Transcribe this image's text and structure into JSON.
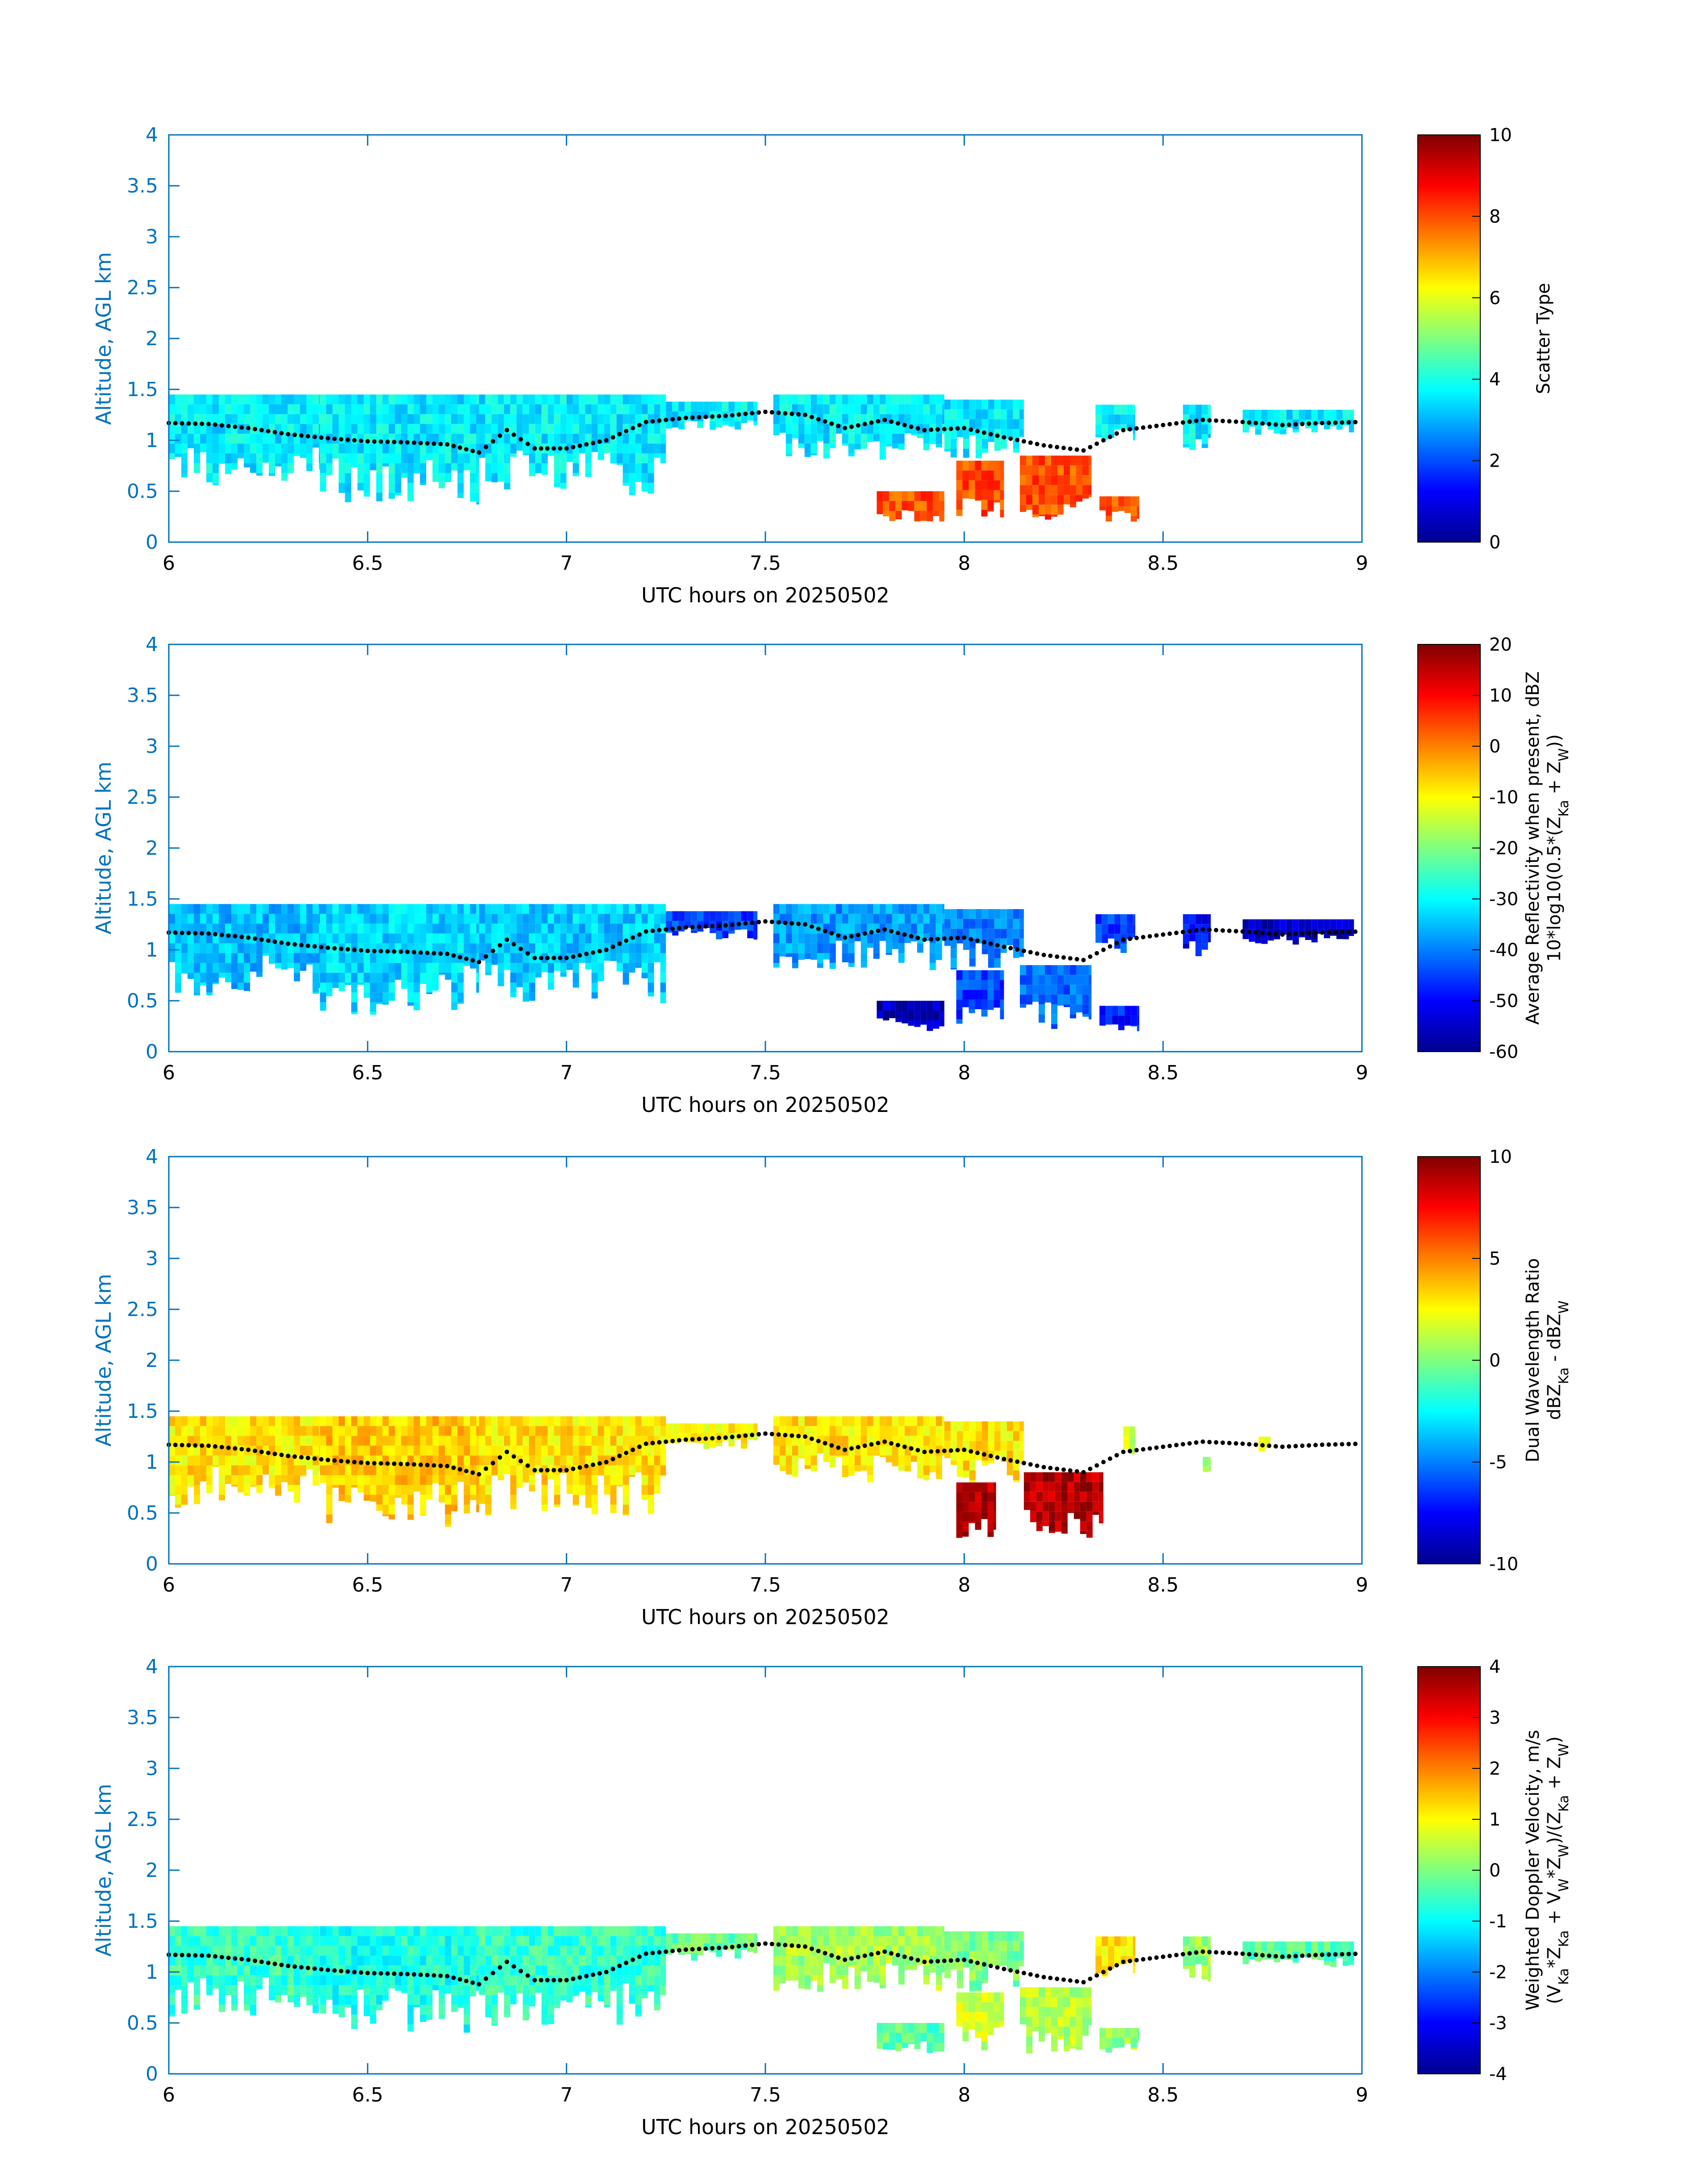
{
  "chart_data": [
    {
      "type": "heatmap",
      "variable": "scatter_type",
      "xlabel": "UTC hours on 20250502",
      "ylabel": "Altitude, AGL km",
      "xlim": [
        6,
        9
      ],
      "ylim": [
        0,
        4
      ],
      "xticks": [
        6,
        6.5,
        7,
        7.5,
        8,
        8.5,
        9
      ],
      "xtick_labels": [
        "6",
        "6.5",
        "7",
        "7.5",
        "8",
        "8.5",
        "9"
      ],
      "yticks": [
        0,
        0.5,
        1,
        1.5,
        2,
        2.5,
        3,
        3.5,
        4
      ],
      "ytick_labels": [
        "0",
        "0.5",
        "1",
        "1.5",
        "2",
        "2.5",
        "3",
        "3.5",
        "4"
      ],
      "colorbar": {
        "label_lines": [
          "Scatter Type"
        ],
        "clim": [
          0,
          10
        ],
        "ticks": [
          0,
          2,
          4,
          6,
          8,
          10
        ],
        "tick_labels": [
          "0",
          "2",
          "4",
          "6",
          "8",
          "10"
        ]
      },
      "cloud_regions": [
        {
          "x0": 6.0,
          "x1": 6.38,
          "y0": 0.55,
          "y1": 1.45,
          "value": 3.6
        },
        {
          "x0": 6.38,
          "x1": 6.78,
          "y0": 0.35,
          "y1": 1.45,
          "value": 3.6
        },
        {
          "x0": 6.78,
          "x1": 7.25,
          "y0": 0.45,
          "y1": 1.45,
          "value": 3.6
        },
        {
          "x0": 7.25,
          "x1": 7.48,
          "y0": 1.1,
          "y1": 1.38,
          "value": 3.6
        },
        {
          "x0": 7.52,
          "x1": 7.95,
          "y0": 0.8,
          "y1": 1.45,
          "value": 3.6
        },
        {
          "x0": 7.95,
          "x1": 8.15,
          "y0": 0.8,
          "y1": 1.4,
          "value": 3.6
        },
        {
          "x0": 8.33,
          "x1": 8.43,
          "y0": 0.95,
          "y1": 1.35,
          "value": 3.6
        },
        {
          "x0": 8.55,
          "x1": 8.62,
          "y0": 0.9,
          "y1": 1.35,
          "value": 3.6
        },
        {
          "x0": 8.7,
          "x1": 8.98,
          "y0": 1.05,
          "y1": 1.3,
          "value": 3.6
        }
      ],
      "rain_regions": [
        {
          "x0": 7.78,
          "x1": 7.95,
          "y0": 0.2,
          "y1": 0.5,
          "value": 8.0
        },
        {
          "x0": 7.98,
          "x1": 8.1,
          "y0": 0.2,
          "y1": 0.8,
          "value": 8.0
        },
        {
          "x0": 8.14,
          "x1": 8.32,
          "y0": 0.2,
          "y1": 0.85,
          "value": 8.0
        },
        {
          "x0": 8.34,
          "x1": 8.44,
          "y0": 0.2,
          "y1": 0.45,
          "value": 8.0
        }
      ],
      "cloud_base_dots": {
        "x": [
          6.0,
          6.1,
          6.2,
          6.3,
          6.4,
          6.5,
          6.6,
          6.7,
          6.78,
          6.85,
          6.92,
          7.0,
          7.1,
          7.2,
          7.3,
          7.4,
          7.5,
          7.6,
          7.7,
          7.8,
          7.9,
          8.0,
          8.1,
          8.2,
          8.3,
          8.4,
          8.6,
          8.7,
          8.8,
          8.9,
          9.0
        ],
        "y": [
          1.17,
          1.16,
          1.12,
          1.06,
          1.02,
          0.99,
          0.98,
          0.96,
          0.88,
          1.1,
          0.92,
          0.92,
          1.0,
          1.18,
          1.22,
          1.24,
          1.28,
          1.25,
          1.12,
          1.2,
          1.1,
          1.12,
          1.03,
          0.95,
          0.9,
          1.1,
          1.2,
          1.18,
          1.15,
          1.17,
          1.18
        ]
      }
    },
    {
      "type": "heatmap",
      "variable": "average_reflectivity",
      "xlabel": "UTC hours on 20250502",
      "ylabel": "Altitude, AGL km",
      "xlim": [
        6,
        9
      ],
      "ylim": [
        0,
        4
      ],
      "xticks": [
        6,
        6.5,
        7,
        7.5,
        8,
        8.5,
        9
      ],
      "xtick_labels": [
        "6",
        "6.5",
        "7",
        "7.5",
        "8",
        "8.5",
        "9"
      ],
      "yticks": [
        0,
        0.5,
        1,
        1.5,
        2,
        2.5,
        3,
        3.5,
        4
      ],
      "ytick_labels": [
        "0",
        "0.5",
        "1",
        "1.5",
        "2",
        "2.5",
        "3",
        "3.5",
        "4"
      ],
      "colorbar": {
        "label_lines": [
          "Average Reflectivity when present, dBZ",
          "10*log10(0.5*(Z_Ka + Z_W))"
        ],
        "clim": [
          -60,
          20
        ],
        "ticks": [
          -60,
          -50,
          -40,
          -30,
          -20,
          -10,
          0,
          10,
          20
        ],
        "tick_labels": [
          "-60",
          "-50",
          "-40",
          "-30",
          "-20",
          "-10",
          "0",
          "10",
          "20"
        ]
      },
      "cloud_regions": [
        {
          "x0": 6.0,
          "x1": 6.38,
          "y0": 0.55,
          "y1": 1.45,
          "value": -35
        },
        {
          "x0": 6.38,
          "x1": 6.78,
          "y0": 0.35,
          "y1": 1.45,
          "value": -33
        },
        {
          "x0": 6.78,
          "x1": 7.25,
          "y0": 0.45,
          "y1": 1.45,
          "value": -34
        },
        {
          "x0": 7.25,
          "x1": 7.48,
          "y0": 1.1,
          "y1": 1.38,
          "value": -45
        },
        {
          "x0": 7.52,
          "x1": 7.95,
          "y0": 0.8,
          "y1": 1.45,
          "value": -38
        },
        {
          "x0": 7.95,
          "x1": 8.15,
          "y0": 0.8,
          "y1": 1.4,
          "value": -40
        },
        {
          "x0": 8.33,
          "x1": 8.43,
          "y0": 0.95,
          "y1": 1.35,
          "value": -45
        },
        {
          "x0": 8.55,
          "x1": 8.62,
          "y0": 0.9,
          "y1": 1.35,
          "value": -50
        },
        {
          "x0": 8.7,
          "x1": 8.98,
          "y0": 1.05,
          "y1": 1.3,
          "value": -55
        }
      ],
      "rain_regions": [
        {
          "x0": 7.78,
          "x1": 7.95,
          "y0": 0.2,
          "y1": 0.5,
          "value": -55
        },
        {
          "x0": 7.98,
          "x1": 8.1,
          "y0": 0.2,
          "y1": 0.8,
          "value": -45
        },
        {
          "x0": 8.14,
          "x1": 8.32,
          "y0": 0.2,
          "y1": 0.85,
          "value": -42
        },
        {
          "x0": 8.34,
          "x1": 8.44,
          "y0": 0.2,
          "y1": 0.45,
          "value": -48
        }
      ],
      "cloud_base_dots": {
        "x": [
          6.0,
          6.1,
          6.2,
          6.3,
          6.4,
          6.5,
          6.6,
          6.7,
          6.78,
          6.85,
          6.92,
          7.0,
          7.1,
          7.2,
          7.3,
          7.4,
          7.5,
          7.6,
          7.7,
          7.8,
          7.9,
          8.0,
          8.1,
          8.2,
          8.3,
          8.4,
          8.6,
          8.7,
          8.8,
          8.9,
          9.0
        ],
        "y": [
          1.17,
          1.16,
          1.12,
          1.06,
          1.02,
          0.99,
          0.98,
          0.96,
          0.88,
          1.1,
          0.92,
          0.92,
          1.0,
          1.18,
          1.22,
          1.24,
          1.28,
          1.25,
          1.12,
          1.2,
          1.1,
          1.12,
          1.03,
          0.95,
          0.9,
          1.1,
          1.2,
          1.18,
          1.15,
          1.17,
          1.18
        ]
      }
    },
    {
      "type": "heatmap",
      "variable": "dual_wavelength_ratio",
      "xlabel": "UTC hours on 20250502",
      "ylabel": "Altitude, AGL km",
      "xlim": [
        6,
        9
      ],
      "ylim": [
        0,
        4
      ],
      "xticks": [
        6,
        6.5,
        7,
        7.5,
        8,
        8.5,
        9
      ],
      "xtick_labels": [
        "6",
        "6.5",
        "7",
        "7.5",
        "8",
        "8.5",
        "9"
      ],
      "yticks": [
        0,
        0.5,
        1,
        1.5,
        2,
        2.5,
        3,
        3.5,
        4
      ],
      "ytick_labels": [
        "0",
        "0.5",
        "1",
        "1.5",
        "2",
        "2.5",
        "3",
        "3.5",
        "4"
      ],
      "colorbar": {
        "label_lines": [
          "Dual Wavelength Ratio",
          "dBZ_Ka - dBZ_W"
        ],
        "clim": [
          -10,
          10
        ],
        "ticks": [
          -10,
          -5,
          0,
          5,
          10
        ],
        "tick_labels": [
          "-10",
          "-5",
          "0",
          "5",
          "10"
        ]
      },
      "cloud_regions": [
        {
          "x0": 6.0,
          "x1": 6.38,
          "y0": 0.55,
          "y1": 1.45,
          "value": 3.0
        },
        {
          "x0": 6.38,
          "x1": 6.78,
          "y0": 0.35,
          "y1": 1.45,
          "value": 3.5
        },
        {
          "x0": 6.78,
          "x1": 7.25,
          "y0": 0.45,
          "y1": 1.45,
          "value": 3.0
        },
        {
          "x0": 7.25,
          "x1": 7.48,
          "y0": 1.1,
          "y1": 1.38,
          "value": 2.5
        },
        {
          "x0": 7.52,
          "x1": 7.95,
          "y0": 0.8,
          "y1": 1.45,
          "value": 3.0
        },
        {
          "x0": 7.95,
          "x1": 8.15,
          "y0": 0.8,
          "y1": 1.4,
          "value": 3.0
        },
        {
          "x0": 8.4,
          "x1": 8.43,
          "y0": 0.95,
          "y1": 1.35,
          "value": 1.5
        },
        {
          "x0": 8.6,
          "x1": 8.62,
          "y0": 0.9,
          "y1": 1.05,
          "value": 1.0
        },
        {
          "x0": 8.74,
          "x1": 8.77,
          "y0": 1.05,
          "y1": 1.25,
          "value": 1.5
        }
      ],
      "rain_regions": [
        {
          "x0": 7.98,
          "x1": 8.08,
          "y0": 0.25,
          "y1": 0.8,
          "value": 9.0
        },
        {
          "x0": 8.15,
          "x1": 8.35,
          "y0": 0.25,
          "y1": 0.9,
          "value": 9.0
        }
      ],
      "cloud_base_dots": {
        "x": [
          6.0,
          6.1,
          6.2,
          6.3,
          6.4,
          6.5,
          6.6,
          6.7,
          6.78,
          6.85,
          6.92,
          7.0,
          7.1,
          7.2,
          7.3,
          7.4,
          7.5,
          7.6,
          7.7,
          7.8,
          7.9,
          8.0,
          8.1,
          8.2,
          8.3,
          8.4,
          8.6,
          8.7,
          8.8,
          8.9,
          9.0
        ],
        "y": [
          1.17,
          1.16,
          1.12,
          1.06,
          1.02,
          0.99,
          0.98,
          0.96,
          0.88,
          1.1,
          0.92,
          0.92,
          1.0,
          1.18,
          1.22,
          1.24,
          1.28,
          1.25,
          1.12,
          1.2,
          1.1,
          1.12,
          1.03,
          0.95,
          0.9,
          1.1,
          1.2,
          1.18,
          1.15,
          1.17,
          1.18
        ]
      }
    },
    {
      "type": "heatmap",
      "variable": "weighted_doppler_velocity",
      "xlabel": "UTC hours on 20250502",
      "ylabel": "Altitude, AGL km",
      "xlim": [
        6,
        9
      ],
      "ylim": [
        0,
        4
      ],
      "xticks": [
        6,
        6.5,
        7,
        7.5,
        8,
        8.5,
        9
      ],
      "xtick_labels": [
        "6",
        "6.5",
        "7",
        "7.5",
        "8",
        "8.5",
        "9"
      ],
      "yticks": [
        0,
        0.5,
        1,
        1.5,
        2,
        2.5,
        3,
        3.5,
        4
      ],
      "ytick_labels": [
        "0",
        "0.5",
        "1",
        "1.5",
        "2",
        "2.5",
        "3",
        "3.5",
        "4"
      ],
      "colorbar": {
        "label_lines": [
          "Weighted Doppler Velocity, m/s",
          "(V_Ka*Z_Ka + V_W*Z_W)/(Z_Ka + Z_W)"
        ],
        "clim": [
          -4,
          4
        ],
        "ticks": [
          -4,
          -3,
          -2,
          -1,
          0,
          1,
          2,
          3,
          4
        ],
        "tick_labels": [
          "-4",
          "-3",
          "-2",
          "-1",
          "0",
          "1",
          "2",
          "3",
          "4"
        ]
      },
      "cloud_regions": [
        {
          "x0": 6.0,
          "x1": 6.38,
          "y0": 0.55,
          "y1": 1.45,
          "value": -0.6
        },
        {
          "x0": 6.38,
          "x1": 6.78,
          "y0": 0.35,
          "y1": 1.45,
          "value": -0.8
        },
        {
          "x0": 6.78,
          "x1": 7.25,
          "y0": 0.45,
          "y1": 1.45,
          "value": -0.6
        },
        {
          "x0": 7.25,
          "x1": 7.48,
          "y0": 1.1,
          "y1": 1.38,
          "value": -0.2
        },
        {
          "x0": 7.52,
          "x1": 7.95,
          "y0": 0.8,
          "y1": 1.45,
          "value": 0.3
        },
        {
          "x0": 7.95,
          "x1": 8.15,
          "y0": 0.8,
          "y1": 1.4,
          "value": 0.0
        },
        {
          "x0": 8.33,
          "x1": 8.43,
          "y0": 0.95,
          "y1": 1.35,
          "value": 1.2
        },
        {
          "x0": 8.55,
          "x1": 8.62,
          "y0": 0.9,
          "y1": 1.35,
          "value": 0.2
        },
        {
          "x0": 8.7,
          "x1": 8.98,
          "y0": 1.05,
          "y1": 1.3,
          "value": -0.3
        }
      ],
      "rain_regions": [
        {
          "x0": 7.78,
          "x1": 7.95,
          "y0": 0.2,
          "y1": 0.5,
          "value": -0.3
        },
        {
          "x0": 7.98,
          "x1": 8.1,
          "y0": 0.2,
          "y1": 0.8,
          "value": 0.6
        },
        {
          "x0": 8.14,
          "x1": 8.32,
          "y0": 0.2,
          "y1": 0.85,
          "value": 0.4
        },
        {
          "x0": 8.34,
          "x1": 8.44,
          "y0": 0.2,
          "y1": 0.45,
          "value": 0.2
        }
      ],
      "cloud_base_dots": {
        "x": [
          6.0,
          6.1,
          6.2,
          6.3,
          6.4,
          6.5,
          6.6,
          6.7,
          6.78,
          6.85,
          6.92,
          7.0,
          7.1,
          7.2,
          7.3,
          7.4,
          7.5,
          7.6,
          7.7,
          7.8,
          7.9,
          8.0,
          8.1,
          8.2,
          8.3,
          8.4,
          8.6,
          8.7,
          8.8,
          8.9,
          9.0
        ],
        "y": [
          1.17,
          1.16,
          1.12,
          1.06,
          1.02,
          0.99,
          0.98,
          0.96,
          0.88,
          1.1,
          0.92,
          0.92,
          1.0,
          1.18,
          1.22,
          1.24,
          1.28,
          1.25,
          1.12,
          1.2,
          1.1,
          1.12,
          1.03,
          0.95,
          0.9,
          1.1,
          1.2,
          1.18,
          1.15,
          1.17,
          1.18
        ]
      }
    }
  ],
  "colors": {
    "axis": "#0072bd",
    "text": "#000000",
    "dots": "#000000"
  },
  "colormap": "jet"
}
